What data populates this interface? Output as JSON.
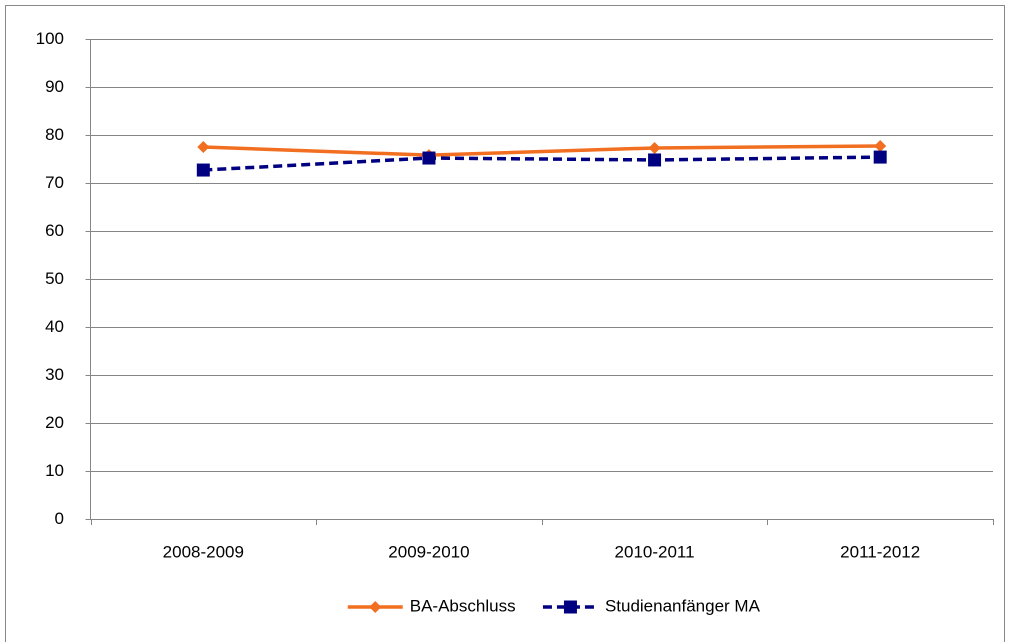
{
  "chart_data": {
    "type": "line",
    "categories": [
      "2008-2009",
      "2009-2010",
      "2010-2011",
      "2011-2012"
    ],
    "series": [
      {
        "name": "BA-Abschluss",
        "color": "#f26f21",
        "values": [
          77.5,
          75.8,
          77.3,
          77.7
        ],
        "marker": "diamond",
        "line_style": "solid"
      },
      {
        "name": "Studienanfänger MA",
        "color": "#000080",
        "values": [
          72.7,
          75.2,
          74.8,
          75.4
        ],
        "marker": "square",
        "line_style": "dashed"
      }
    ],
    "ylim": [
      0,
      100
    ],
    "yticks": [
      0,
      10,
      20,
      30,
      40,
      50,
      60,
      70,
      80,
      90,
      100
    ],
    "grid": true,
    "legend": "bottom"
  }
}
